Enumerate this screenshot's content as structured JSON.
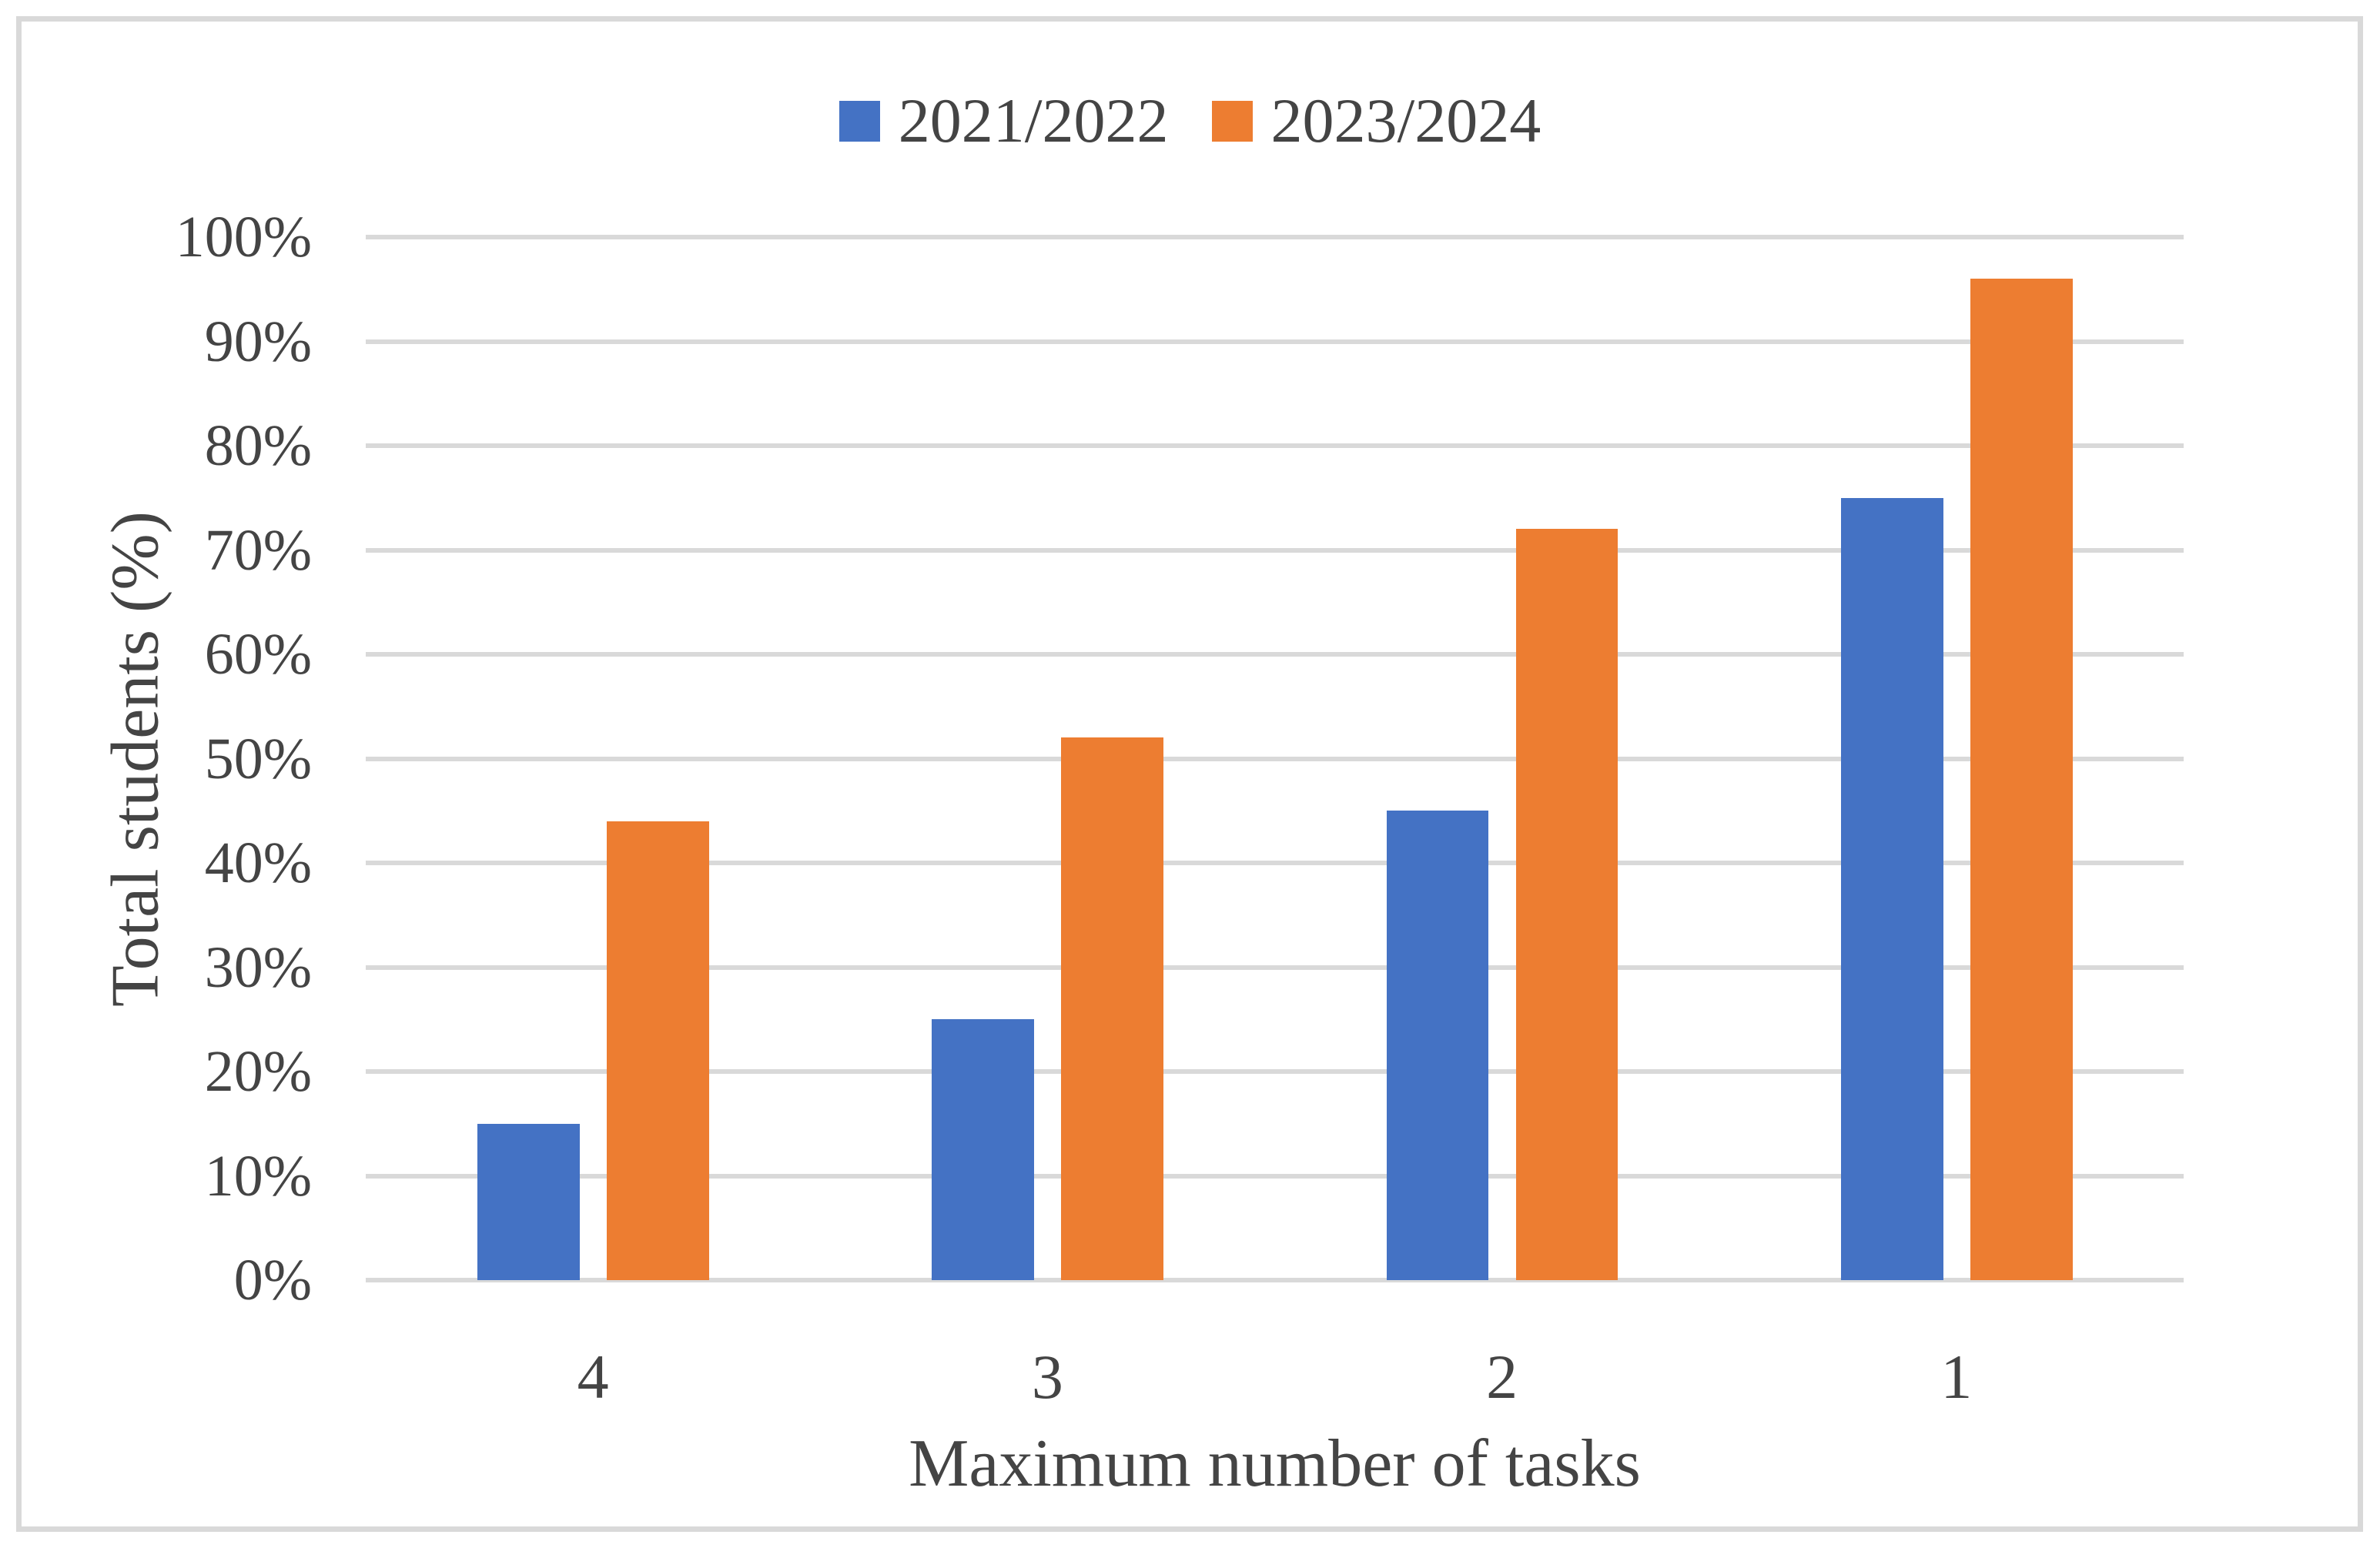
{
  "chart_data": {
    "type": "bar",
    "categories": [
      "4",
      "3",
      "2",
      "1"
    ],
    "series": [
      {
        "name": "2021/2022",
        "color": "#4472C4",
        "values": [
          15,
          25,
          45,
          75
        ]
      },
      {
        "name": "2023/2024",
        "color": "#ED7D31",
        "values": [
          44,
          52,
          72,
          96
        ]
      }
    ],
    "title": "",
    "xlabel": "Maximum number of tasks",
    "ylabel": "Total students (%)",
    "ylim": [
      0,
      100
    ],
    "ytick_step": 10,
    "ytick_labels": [
      "0%",
      "10%",
      "20%",
      "30%",
      "40%",
      "50%",
      "60%",
      "70%",
      "80%",
      "90%",
      "100%"
    ],
    "grid": true,
    "legend_position": "top-center"
  },
  "colors": {
    "background": "#FFFFFF",
    "frame_border": "#D9D9D9",
    "gridline": "#D9D9D9",
    "text": "#444444",
    "series_blue": "#4472C4",
    "series_orange": "#ED7D31"
  }
}
